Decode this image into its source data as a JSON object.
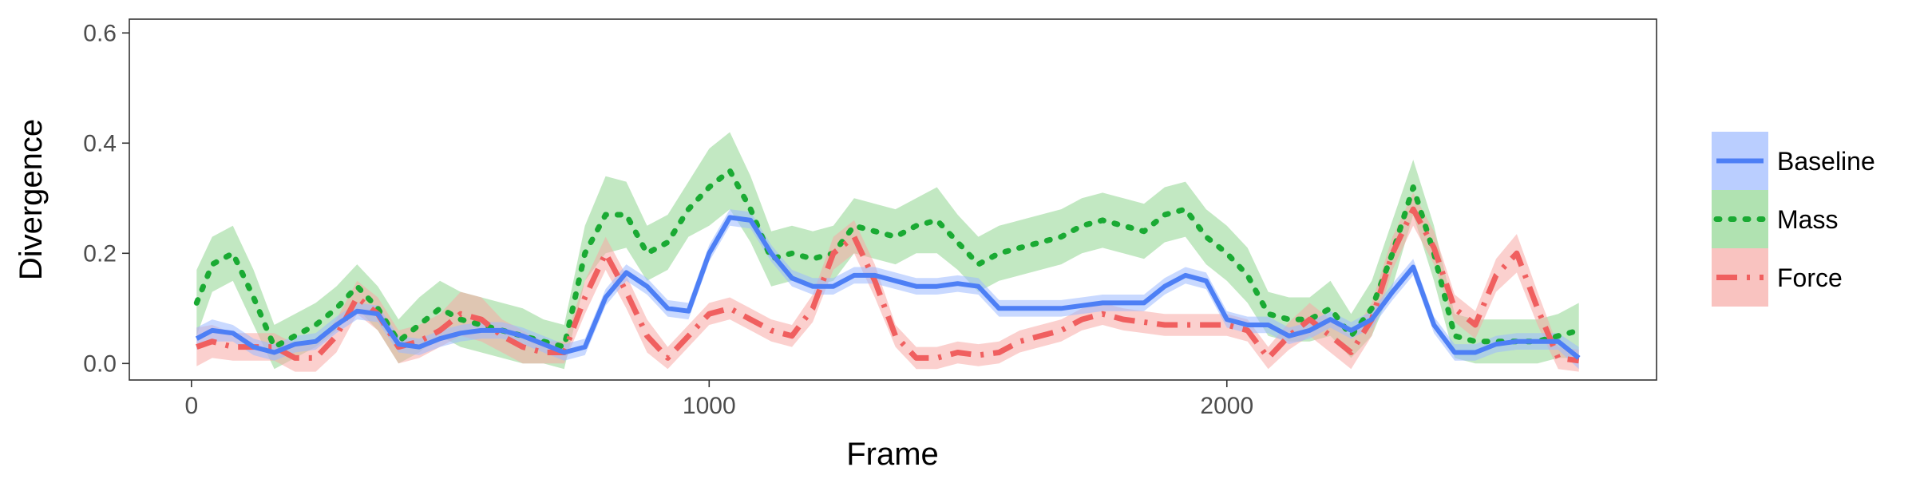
{
  "chart_data": {
    "type": "line",
    "title": "",
    "xlabel": "Frame",
    "ylabel": "Divergence",
    "xlim": [
      -120,
      2830
    ],
    "ylim": [
      -0.03,
      0.625
    ],
    "x_ticks": [
      0,
      1000,
      2000
    ],
    "x_tick_labels": [
      "0",
      "1000",
      "2000"
    ],
    "y_ticks": [
      0.0,
      0.2,
      0.4,
      0.6
    ],
    "y_tick_labels": [
      "0.0",
      "0.2",
      "0.4",
      "0.6"
    ],
    "grid": false,
    "legend_position": "right",
    "series": [
      {
        "name": "Baseline",
        "color": "#4d7ff5",
        "band_color": "#9db9ff",
        "line_style": "solid",
        "x": [
          10,
          40,
          80,
          120,
          160,
          200,
          240,
          280,
          320,
          360,
          400,
          440,
          480,
          520,
          560,
          600,
          640,
          680,
          720,
          760,
          800,
          840,
          880,
          920,
          960,
          1000,
          1040,
          1080,
          1120,
          1160,
          1200,
          1240,
          1280,
          1320,
          1360,
          1400,
          1440,
          1480,
          1520,
          1560,
          1600,
          1640,
          1680,
          1720,
          1760,
          1800,
          1840,
          1880,
          1920,
          1960,
          2000,
          2040,
          2080,
          2120,
          2160,
          2200,
          2240,
          2280,
          2320,
          2360,
          2400,
          2440,
          2480,
          2520,
          2560,
          2600,
          2640,
          2680
        ],
        "y": [
          0.045,
          0.06,
          0.055,
          0.03,
          0.02,
          0.035,
          0.04,
          0.07,
          0.095,
          0.09,
          0.035,
          0.03,
          0.045,
          0.055,
          0.06,
          0.06,
          0.05,
          0.035,
          0.02,
          0.03,
          0.12,
          0.165,
          0.14,
          0.1,
          0.095,
          0.2,
          0.265,
          0.26,
          0.2,
          0.155,
          0.14,
          0.14,
          0.16,
          0.16,
          0.15,
          0.14,
          0.14,
          0.145,
          0.14,
          0.1,
          0.1,
          0.1,
          0.1,
          0.105,
          0.11,
          0.11,
          0.11,
          0.14,
          0.16,
          0.15,
          0.08,
          0.07,
          0.07,
          0.05,
          0.06,
          0.08,
          0.06,
          0.08,
          0.13,
          0.175,
          0.07,
          0.02,
          0.02,
          0.035,
          0.04,
          0.04,
          0.04,
          0.01
        ],
        "ci": [
          0.02,
          0.02,
          0.015,
          0.015,
          0.015,
          0.015,
          0.015,
          0.015,
          0.015,
          0.015,
          0.015,
          0.015,
          0.015,
          0.015,
          0.015,
          0.015,
          0.015,
          0.015,
          0.015,
          0.015,
          0.015,
          0.015,
          0.015,
          0.015,
          0.015,
          0.015,
          0.015,
          0.015,
          0.015,
          0.015,
          0.015,
          0.015,
          0.015,
          0.015,
          0.015,
          0.015,
          0.015,
          0.015,
          0.015,
          0.015,
          0.015,
          0.015,
          0.015,
          0.015,
          0.015,
          0.015,
          0.015,
          0.015,
          0.015,
          0.015,
          0.015,
          0.015,
          0.015,
          0.015,
          0.015,
          0.015,
          0.015,
          0.015,
          0.015,
          0.015,
          0.015,
          0.015,
          0.015,
          0.015,
          0.015,
          0.015,
          0.015,
          0.02
        ]
      },
      {
        "name": "Mass",
        "color": "#1aaa33",
        "band_color": "#8fd690",
        "line_style": "dotted",
        "x": [
          10,
          40,
          80,
          120,
          160,
          200,
          240,
          280,
          320,
          360,
          400,
          440,
          480,
          520,
          560,
          600,
          640,
          680,
          720,
          760,
          800,
          840,
          880,
          920,
          960,
          1000,
          1040,
          1080,
          1120,
          1160,
          1200,
          1240,
          1280,
          1320,
          1360,
          1400,
          1440,
          1480,
          1520,
          1560,
          1600,
          1640,
          1680,
          1720,
          1760,
          1800,
          1840,
          1880,
          1920,
          1960,
          2000,
          2040,
          2080,
          2120,
          2160,
          2200,
          2240,
          2280,
          2320,
          2360,
          2400,
          2440,
          2480,
          2520,
          2560,
          2600,
          2640,
          2680
        ],
        "y": [
          0.11,
          0.18,
          0.2,
          0.12,
          0.03,
          0.05,
          0.07,
          0.1,
          0.14,
          0.1,
          0.04,
          0.07,
          0.1,
          0.08,
          0.07,
          0.06,
          0.05,
          0.04,
          0.03,
          0.2,
          0.27,
          0.27,
          0.2,
          0.22,
          0.28,
          0.32,
          0.35,
          0.28,
          0.19,
          0.2,
          0.19,
          0.2,
          0.25,
          0.24,
          0.23,
          0.25,
          0.26,
          0.22,
          0.18,
          0.2,
          0.21,
          0.22,
          0.23,
          0.25,
          0.26,
          0.25,
          0.24,
          0.27,
          0.28,
          0.23,
          0.2,
          0.16,
          0.09,
          0.08,
          0.08,
          0.1,
          0.05,
          0.1,
          0.2,
          0.32,
          0.2,
          0.05,
          0.04,
          0.04,
          0.04,
          0.04,
          0.05,
          0.06
        ],
        "ci": [
          0.06,
          0.05,
          0.05,
          0.05,
          0.04,
          0.04,
          0.04,
          0.04,
          0.04,
          0.04,
          0.04,
          0.05,
          0.05,
          0.05,
          0.05,
          0.05,
          0.05,
          0.04,
          0.04,
          0.05,
          0.07,
          0.06,
          0.05,
          0.05,
          0.05,
          0.07,
          0.07,
          0.06,
          0.05,
          0.05,
          0.05,
          0.05,
          0.05,
          0.05,
          0.05,
          0.05,
          0.06,
          0.05,
          0.05,
          0.05,
          0.05,
          0.05,
          0.05,
          0.05,
          0.05,
          0.05,
          0.05,
          0.05,
          0.05,
          0.05,
          0.05,
          0.05,
          0.04,
          0.04,
          0.04,
          0.05,
          0.04,
          0.05,
          0.06,
          0.05,
          0.05,
          0.04,
          0.04,
          0.04,
          0.04,
          0.04,
          0.04,
          0.05
        ]
      },
      {
        "name": "Force",
        "color": "#f05f5f",
        "band_color": "#f7a9a5",
        "line_style": "dashdot",
        "x": [
          10,
          40,
          80,
          120,
          160,
          200,
          240,
          280,
          320,
          360,
          400,
          440,
          480,
          520,
          560,
          600,
          640,
          680,
          720,
          760,
          800,
          840,
          880,
          920,
          960,
          1000,
          1040,
          1080,
          1120,
          1160,
          1200,
          1240,
          1280,
          1320,
          1360,
          1400,
          1440,
          1480,
          1520,
          1560,
          1600,
          1640,
          1680,
          1720,
          1760,
          1800,
          1840,
          1880,
          1920,
          1960,
          2000,
          2040,
          2080,
          2120,
          2160,
          2200,
          2240,
          2280,
          2320,
          2360,
          2400,
          2440,
          2480,
          2520,
          2560,
          2600,
          2640,
          2680
        ],
        "y": [
          0.03,
          0.04,
          0.03,
          0.03,
          0.03,
          0.01,
          0.01,
          0.05,
          0.12,
          0.09,
          0.03,
          0.04,
          0.06,
          0.09,
          0.08,
          0.05,
          0.03,
          0.02,
          0.02,
          0.12,
          0.2,
          0.13,
          0.05,
          0.01,
          0.05,
          0.09,
          0.1,
          0.08,
          0.06,
          0.05,
          0.1,
          0.2,
          0.23,
          0.15,
          0.05,
          0.01,
          0.01,
          0.02,
          0.015,
          0.02,
          0.04,
          0.05,
          0.06,
          0.08,
          0.09,
          0.08,
          0.075,
          0.07,
          0.07,
          0.07,
          0.07,
          0.06,
          0.01,
          0.05,
          0.08,
          0.05,
          0.02,
          0.08,
          0.2,
          0.28,
          0.21,
          0.1,
          0.07,
          0.16,
          0.2,
          0.1,
          0.01,
          0.005
        ],
        "ci": [
          0.035,
          0.03,
          0.025,
          0.025,
          0.025,
          0.025,
          0.025,
          0.03,
          0.03,
          0.03,
          0.03,
          0.03,
          0.03,
          0.04,
          0.04,
          0.03,
          0.03,
          0.02,
          0.02,
          0.03,
          0.03,
          0.03,
          0.03,
          0.02,
          0.02,
          0.02,
          0.02,
          0.02,
          0.02,
          0.02,
          0.025,
          0.03,
          0.03,
          0.03,
          0.02,
          0.02,
          0.02,
          0.02,
          0.02,
          0.02,
          0.02,
          0.02,
          0.02,
          0.02,
          0.02,
          0.02,
          0.02,
          0.02,
          0.02,
          0.02,
          0.02,
          0.02,
          0.02,
          0.025,
          0.03,
          0.03,
          0.03,
          0.03,
          0.03,
          0.03,
          0.03,
          0.025,
          0.025,
          0.03,
          0.035,
          0.03,
          0.02,
          0.02
        ]
      }
    ]
  }
}
